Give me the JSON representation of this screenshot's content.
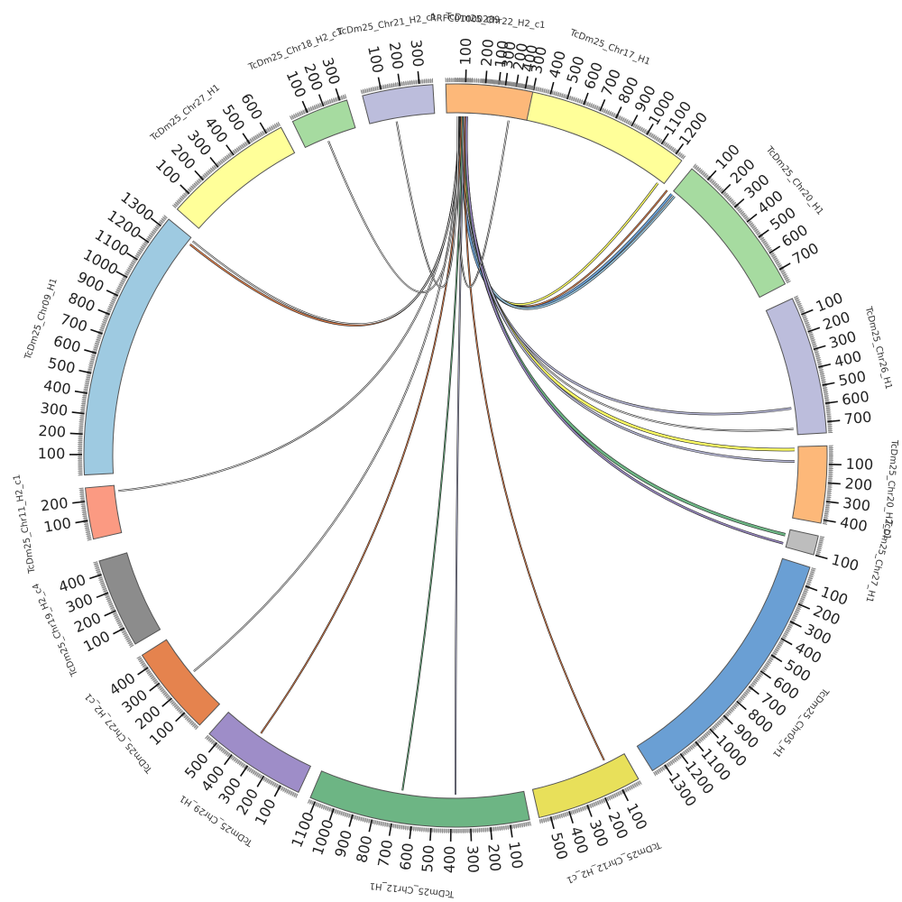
{
  "figure": {
    "type": "circos",
    "center_label": "RRFC01000289"
  },
  "segments": [
    {
      "id": "s1",
      "name": "RRFC01000289",
      "color": "#9ecae1",
      "start": 90.0,
      "end": 92.5,
      "ticks": [],
      "label_range": [
        0,
        0
      ]
    },
    {
      "id": "s2",
      "name": "TcDm25_Chr17_H1",
      "color": "#ffff99",
      "start": 94.0,
      "end": 127.5,
      "ticks": [
        100,
        200,
        300,
        400,
        500,
        600,
        700,
        800,
        900,
        1000,
        1100,
        1200
      ],
      "label_range": [
        0,
        1250
      ]
    },
    {
      "id": "s3",
      "name": "TcDm25_Chr20_H1",
      "color": "#a6dba0",
      "start": 129.5,
      "end": 152.5,
      "ticks": [
        100,
        200,
        300,
        400,
        500,
        600,
        700
      ],
      "label_range": [
        0,
        780
      ]
    },
    {
      "id": "s4",
      "name": "TcDm25_Chr26_H1",
      "color": "#bcbddc",
      "start": 155.0,
      "end": 176.5,
      "ticks": [
        100,
        200,
        300,
        400,
        500,
        600,
        700
      ],
      "label_range": [
        0,
        760
      ]
    },
    {
      "id": "s5",
      "name": "TcDm25_Chr20_H2_c1",
      "color": "#fdb879",
      "start": 178.5,
      "end": 190.5,
      "ticks": [
        100,
        200,
        300,
        400
      ],
      "label_range": [
        0,
        420
      ]
    },
    {
      "id": "s6",
      "name": "TcDm25_Chr27_H1",
      "color": "#bdbdbd",
      "start": 192.5,
      "end": 195.5,
      "ticks": [
        100
      ],
      "label_range": [
        0,
        100
      ]
    },
    {
      "id": "s7",
      "name": "TcDm25_Chr05_H1",
      "color": "#6a9fd4",
      "start": 197.5,
      "end": 238.0,
      "ticks": [
        100,
        200,
        300,
        400,
        500,
        600,
        700,
        800,
        900,
        1000,
        1100,
        1200,
        1300
      ],
      "label_range": [
        0,
        1370
      ]
    },
    {
      "id": "s8",
      "name": "TcDm25_Chr12_H2_c1",
      "color": "#e8e05a",
      "start": 240.5,
      "end": 257.0,
      "ticks": [
        100,
        200,
        300,
        400,
        500
      ],
      "label_range": [
        0,
        560
      ]
    },
    {
      "id": "s9",
      "name": "TcDm25_Chr12_H1",
      "color": "#6db584",
      "start": 258.5,
      "end": 293.0,
      "ticks": [
        100,
        200,
        300,
        400,
        500,
        600,
        700,
        800,
        900,
        1000,
        1100
      ],
      "label_range": [
        0,
        1130
      ]
    },
    {
      "id": "s10",
      "name": "TcDm25_Chr29_H1",
      "color": "#9e8dc8",
      "start": 295.0,
      "end": 311.5,
      "ticks": [
        100,
        200,
        300,
        400,
        500
      ],
      "label_range": [
        0,
        560
      ]
    },
    {
      "id": "s11",
      "name": "TcDm25_Chr27_H2_c1",
      "color": "#e5834e",
      "start": 313.5,
      "end": 327.5,
      "ticks": [
        100,
        200,
        300,
        400
      ],
      "label_range": [
        0,
        470
      ]
    },
    {
      "id": "s12",
      "name": "TcDm25_Chr19_H2_c4",
      "color": "#8c8c8c",
      "start": 329.5,
      "end": 343.5,
      "ticks": [
        100,
        200,
        300,
        400
      ],
      "label_range": [
        0,
        470
      ]
    },
    {
      "id": "s13",
      "name": "TcDm25_Chr11_H2_c1",
      "color": "#fb9a82",
      "start": 347.0,
      "end": 355.0,
      "ticks": [
        100,
        200
      ],
      "label_range": [
        0,
        270
      ]
    },
    {
      "id": "s14",
      "name": "TcDm25_Chr09_H1",
      "color": "#9ecae1",
      "start": 357.0,
      "end": 399.5,
      "ticks": [
        100,
        200,
        300,
        400,
        500,
        600,
        700,
        800,
        900,
        1000,
        1100,
        1200,
        1300
      ],
      "label_range": [
        0,
        1350
      ]
    },
    {
      "id": "s15",
      "name": "TcDm25_Chr27_H1",
      "color": "#ffff99",
      "start": 401.5,
      "end": 422.0,
      "ticks": [
        100,
        200,
        300,
        400,
        500,
        600
      ],
      "label_range": [
        0,
        680
      ]
    },
    {
      "id": "s16",
      "name": "TcDm25_Chr18_H2_c1",
      "color": "#a6dba0",
      "start": 424.0,
      "end": 433.0,
      "ticks": [
        100,
        200,
        300
      ],
      "label_range": [
        0,
        340
      ]
    },
    {
      "id": "s17",
      "name": "TcDm25_Chr21_H2_c1",
      "color": "#bcbddc",
      "start": 435.5,
      "end": 446.5,
      "ticks": [
        100,
        200,
        300
      ],
      "label_range": [
        0,
        370
      ]
    },
    {
      "id": "s18",
      "name": "TcDm25_Chr22_H2_c1",
      "color": "#fdb879",
      "start": 448.5,
      "end": 462.0,
      "ticks": [
        100,
        200,
        300,
        400
      ],
      "label_range": [
        0,
        440
      ]
    }
  ],
  "links": [
    {
      "from_angle": 91.4,
      "to_angle": 126.6,
      "color": "#ffff66",
      "width": 1.5
    },
    {
      "from_angle": 91.2,
      "to_angle": 128.6,
      "color": "#e5834e",
      "width": 1.0
    },
    {
      "from_angle": 91.1,
      "to_angle": 129.6,
      "color": "#6a9fd4",
      "width": 2.0
    },
    {
      "from_angle": 91.6,
      "to_angle": 130.2,
      "color": "#9ecae1",
      "width": 1.5
    },
    {
      "from_angle": 91.0,
      "to_angle": 172.0,
      "color": "#bcbddc",
      "width": 1.5
    },
    {
      "from_angle": 91.3,
      "to_angle": 175.5,
      "color": "#ffffff",
      "width": 0.8
    },
    {
      "from_angle": 91.5,
      "to_angle": 179.0,
      "color": "#ffff66",
      "width": 2.5
    },
    {
      "from_angle": 91.7,
      "to_angle": 181.0,
      "color": "#bcbddc",
      "width": 1.5
    },
    {
      "from_angle": 91.8,
      "to_angle": 193.5,
      "color": "#6db584",
      "width": 2.5
    },
    {
      "from_angle": 91.9,
      "to_angle": 195.0,
      "color": "#9e8dc8",
      "width": 1.5
    },
    {
      "from_angle": 91.6,
      "to_angle": 244.0,
      "color": "#e5834e",
      "width": 0.8
    },
    {
      "from_angle": 91.4,
      "to_angle": 270.0,
      "color": "#bcbddc",
      "width": 0.8
    },
    {
      "from_angle": 91.2,
      "to_angle": 279.0,
      "color": "#6db584",
      "width": 0.8
    },
    {
      "from_angle": 91.0,
      "to_angle": 305.0,
      "color": "#e5834e",
      "width": 0.8
    },
    {
      "from_angle": 90.8,
      "to_angle": 320.5,
      "color": "#ffffff",
      "width": 0.8
    },
    {
      "from_angle": 90.7,
      "to_angle": 354.0,
      "color": "#ffffff",
      "width": 0.8
    },
    {
      "from_angle": 90.6,
      "to_angle": 398.5,
      "color": "#e5834e",
      "width": 1.2
    },
    {
      "from_angle": 90.6,
      "to_angle": 399.2,
      "color": "#ffffff",
      "width": 0.8
    },
    {
      "from_angle": 90.5,
      "to_angle": 428.0,
      "color": "#ffffff",
      "width": 0.8
    },
    {
      "from_angle": 90.5,
      "to_angle": 440.0,
      "color": "#ffffff",
      "width": 0.8
    },
    {
      "from_angle": 90.4,
      "to_angle": 459.0,
      "color": "#ffffff",
      "width": 0.8
    }
  ],
  "style": {
    "background": "#ffffff",
    "outline": "#555555",
    "tick_color": "#777777"
  }
}
